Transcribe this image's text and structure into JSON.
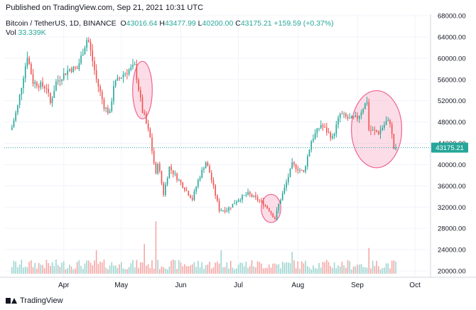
{
  "header": {
    "published": "Published on TradingView.com, Sep 21, 2021 10:31 UTC"
  },
  "legend": {
    "symbol": "Bitcoin / TetherUS, 1D, BINANCE",
    "o_label": "O",
    "o_value": "43016.64",
    "h_label": "H",
    "h_value": "43477.99",
    "l_label": "L",
    "l_value": "40200.00",
    "c_label": "C",
    "c_value": "43175.21",
    "change": "+159.59 (+0.37%)",
    "vol_label": "Vol",
    "vol_value": "33.339K"
  },
  "footer": {
    "brand": "TradingView"
  },
  "colors": {
    "up": "#26a69a",
    "down": "#ef5350",
    "vol_up": "#9fd6d1",
    "vol_down": "#f5a8a6",
    "price_tag": "#26a69a",
    "highlight": "#f06292"
  },
  "chart_data": {
    "type": "candlestick",
    "x_ticks": [
      "Apr",
      "May",
      "Jun",
      "Jul",
      "Aug",
      "Sep",
      "Oct"
    ],
    "y_ticks": [
      "20000.00",
      "24000.00",
      "28000.00",
      "32000.00",
      "36000.00",
      "40000.00",
      "44000.00",
      "48000.00",
      "52000.00",
      "56000.00",
      "60000.00",
      "64000.00",
      "68000.00"
    ],
    "last_price": 43175.21,
    "last_price_label": "43175.21",
    "anchors": [
      [
        "2021-03-05",
        47000
      ],
      [
        "2021-03-08",
        51000
      ],
      [
        "2021-03-13",
        60500
      ],
      [
        "2021-03-16",
        55500
      ],
      [
        "2021-03-23",
        54500
      ],
      [
        "2021-03-25",
        51500
      ],
      [
        "2021-03-28",
        55500
      ],
      [
        "2021-04-04",
        58000
      ],
      [
        "2021-04-08",
        58000
      ],
      [
        "2021-04-13",
        63500
      ],
      [
        "2021-04-14",
        63000
      ],
      [
        "2021-04-18",
        56000
      ],
      [
        "2021-04-22",
        51000
      ],
      [
        "2021-04-25",
        49500
      ],
      [
        "2021-04-27",
        55000
      ],
      [
        "2021-05-02",
        57000
      ],
      [
        "2021-05-08",
        58500
      ],
      [
        "2021-05-12",
        50000
      ],
      [
        "2021-05-13",
        49000
      ],
      [
        "2021-05-16",
        45000
      ],
      [
        "2021-05-19",
        38000
      ],
      [
        "2021-05-20",
        40500
      ],
      [
        "2021-05-23",
        34500
      ],
      [
        "2021-05-26",
        39500
      ],
      [
        "2021-06-01",
        36500
      ],
      [
        "2021-06-07",
        33500
      ],
      [
        "2021-06-10",
        37000
      ],
      [
        "2021-06-14",
        40500
      ],
      [
        "2021-06-16",
        38500
      ],
      [
        "2021-06-21",
        31500
      ],
      [
        "2021-06-25",
        31500
      ],
      [
        "2021-07-01",
        33500
      ],
      [
        "2021-07-06",
        34500
      ],
      [
        "2021-07-13",
        33000
      ],
      [
        "2021-07-17",
        31500
      ],
      [
        "2021-07-20",
        29800
      ],
      [
        "2021-07-22",
        32500
      ],
      [
        "2021-07-25",
        35500
      ],
      [
        "2021-07-29",
        40000
      ],
      [
        "2021-08-04",
        38500
      ],
      [
        "2021-08-08",
        44500
      ],
      [
        "2021-08-13",
        47500
      ],
      [
        "2021-08-19",
        45000
      ],
      [
        "2021-08-23",
        49500
      ],
      [
        "2021-08-28",
        48500
      ],
      [
        "2021-09-01",
        48800
      ],
      [
        "2021-09-06",
        52000
      ],
      [
        "2021-09-07",
        46500
      ],
      [
        "2021-09-12",
        46000
      ],
      [
        "2021-09-16",
        48000
      ],
      [
        "2021-09-18",
        48000
      ],
      [
        "2021-09-20",
        43016.64
      ],
      [
        "2021-09-21",
        43175.21
      ]
    ],
    "volume_spikes": [
      [
        "2021-05-19",
        67000
      ],
      [
        "2021-05-13",
        38000
      ],
      [
        "2021-04-18",
        30000
      ],
      [
        "2021-09-07",
        33000
      ],
      [
        "2021-07-29",
        28000
      ],
      [
        "2021-06-22",
        30000
      ]
    ],
    "highlights": [
      {
        "from": "2021-05-08",
        "to": "2021-05-16",
        "low": 49000,
        "high": 59000
      },
      {
        "from": "2021-07-14",
        "to": "2021-07-22",
        "low": 29500,
        "high": 34000
      },
      {
        "from": "2021-08-30",
        "to": "2021-09-23",
        "low": 39800,
        "high": 53500
      }
    ]
  }
}
